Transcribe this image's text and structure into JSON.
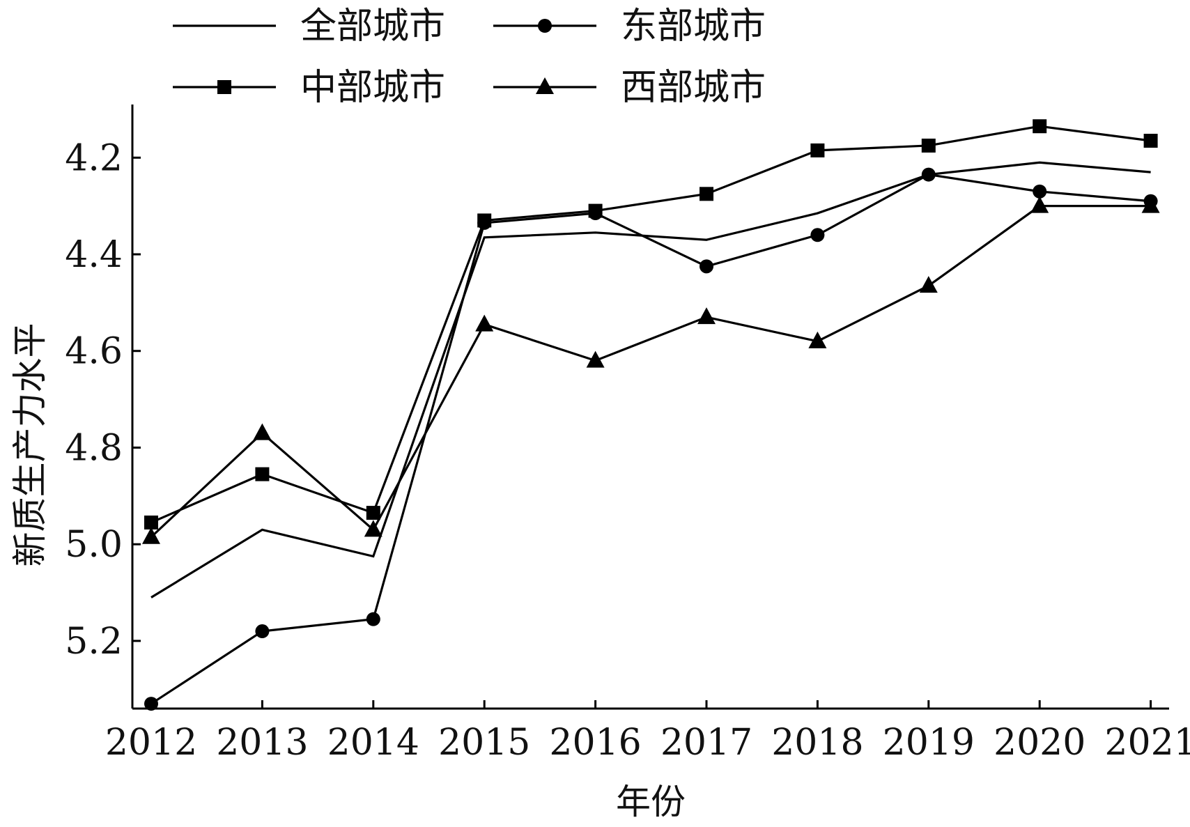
{
  "chart_data": {
    "type": "line",
    "xlabel": "年份",
    "ylabel": "新质生产力水平",
    "y_inverted": true,
    "ylim": [
      4.09,
      5.34
    ],
    "yticks": [
      "4.2",
      "4.4",
      "4.6",
      "4.8",
      "5.0",
      "5.2"
    ],
    "categories": [
      "2012",
      "2013",
      "2014",
      "2015",
      "2016",
      "2017",
      "2018",
      "2019",
      "2020",
      "2021"
    ],
    "legend_position": "top",
    "series": [
      {
        "name": "全部城市",
        "marker": "none",
        "values": [
          5.11,
          4.97,
          5.025,
          4.365,
          4.355,
          4.37,
          4.315,
          4.235,
          4.21,
          4.23
        ]
      },
      {
        "name": "东部城市",
        "marker": "circle",
        "values": [
          5.33,
          5.18,
          5.155,
          4.335,
          4.315,
          4.425,
          4.36,
          4.235,
          4.27,
          4.29
        ]
      },
      {
        "name": "中部城市",
        "marker": "square",
        "values": [
          4.955,
          4.855,
          4.935,
          4.33,
          4.31,
          4.275,
          4.185,
          4.175,
          4.135,
          4.165
        ]
      },
      {
        "name": "西部城市",
        "marker": "triangle",
        "values": [
          4.985,
          4.77,
          4.97,
          4.545,
          4.62,
          4.53,
          4.58,
          4.465,
          4.3,
          4.3
        ]
      }
    ]
  }
}
